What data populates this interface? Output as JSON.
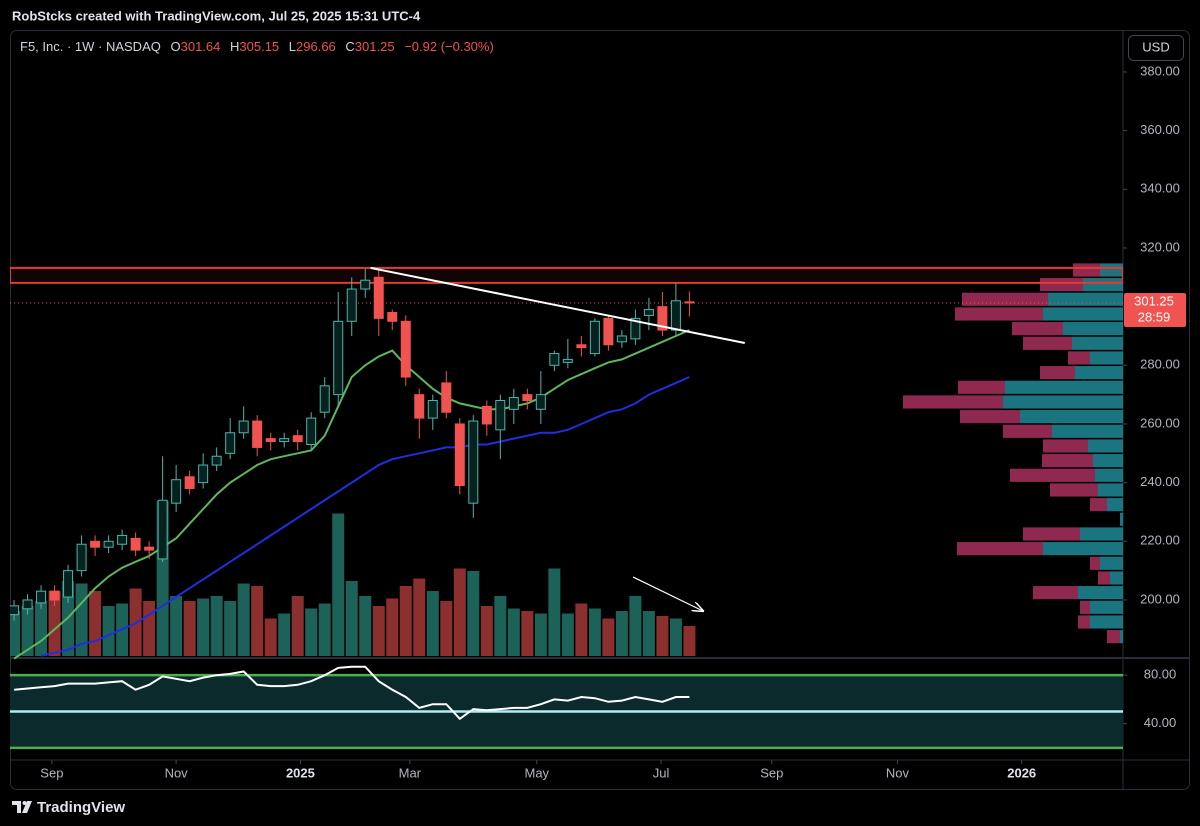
{
  "chart_data": {
    "type": "candlestick",
    "header": "RobStcks created with TradingView.com, Jul 25, 2025 15:31 UTC-4",
    "symbol": "F5, Inc. · 1W · NASDAQ",
    "ohlc_labels": [
      "O",
      "H",
      "L",
      "C"
    ],
    "change": "−0.92 (−0.30%)",
    "currency": "USD",
    "countdown": "28:59",
    "brand": "TradingView",
    "up_color": "#4db6ac",
    "down_color": "#f05350",
    "open": [
      195,
      197,
      199,
      203,
      201,
      210,
      220,
      218,
      219,
      221,
      218,
      214,
      233,
      242,
      240,
      246,
      250,
      257,
      261,
      255,
      254,
      256,
      253,
      264,
      270,
      295,
      306,
      310,
      298,
      295,
      270,
      262,
      274,
      260,
      233,
      266,
      258,
      265,
      270,
      265,
      280,
      281,
      287,
      284,
      296,
      288,
      289,
      297,
      300,
      292,
      301.64
    ],
    "high": [
      200,
      202,
      205,
      205,
      212,
      222,
      222,
      222,
      224,
      223,
      220,
      249,
      246,
      244,
      250,
      252,
      262,
      266,
      263,
      257,
      257,
      258,
      264,
      276,
      305,
      310,
      313,
      313,
      299,
      297,
      272,
      270,
      278,
      262,
      263,
      268,
      270,
      272,
      272,
      278,
      285,
      289,
      290,
      296,
      297,
      292,
      299,
      303,
      305,
      308,
      305.15
    ],
    "low": [
      193,
      195,
      197,
      198,
      199,
      208,
      215,
      216,
      217,
      215,
      214,
      213,
      230,
      236,
      238,
      244,
      248,
      255,
      249,
      251,
      252,
      251,
      251,
      262,
      266,
      290,
      303,
      290,
      292,
      273,
      255,
      258,
      262,
      236,
      228,
      256,
      248,
      260,
      265,
      260,
      278,
      279,
      283,
      283,
      285,
      286,
      287,
      292,
      290,
      290,
      296.66
    ],
    "close": [
      198,
      200,
      203,
      200,
      210,
      219,
      218,
      220,
      222,
      217,
      217,
      234,
      241,
      238,
      246,
      249,
      257,
      261,
      252,
      254,
      255,
      254,
      262,
      273,
      295,
      306,
      309,
      296,
      295,
      276,
      262,
      268,
      264,
      239,
      261,
      260,
      268,
      269,
      268,
      270,
      284,
      282,
      286,
      295,
      287,
      290,
      296,
      299,
      292,
      302,
      301.25
    ],
    "volume": {
      "up_color": "#1d6259",
      "down_color": "#8c2f2f",
      "values": [
        1.8,
        2.0,
        2.2,
        2.6,
        3.0,
        2.9,
        2.6,
        2.0,
        2.1,
        2.7,
        2.2,
        6.2,
        2.4,
        2.2,
        2.3,
        2.4,
        2.2,
        2.9,
        2.8,
        1.5,
        1.7,
        2.4,
        1.9,
        2.1,
        5.7,
        3.0,
        2.4,
        2.0,
        2.3,
        2.8,
        3.1,
        2.6,
        2.2,
        3.5,
        3.4,
        2.0,
        2.4,
        1.9,
        1.8,
        1.7,
        3.5,
        1.7,
        2.1,
        1.9,
        1.5,
        1.8,
        2.4,
        1.8,
        1.6,
        1.5,
        1.2
      ]
    },
    "moving_averages": [
      {
        "color": "#5cb85c",
        "values": [
          180,
          183,
          186,
          190,
          194,
          199,
          204,
          208,
          211,
          213,
          215,
          218,
          221,
          226,
          231,
          236,
          240,
          243,
          246,
          248,
          249,
          250,
          251,
          256,
          266,
          276,
          280,
          283,
          285,
          280,
          276,
          272,
          269,
          267,
          266,
          265,
          265,
          266,
          267,
          269,
          272,
          275,
          277,
          279,
          281,
          282,
          284,
          286,
          288,
          290,
          292
        ]
      },
      {
        "color": "#1d2fe0",
        "values": [
          null,
          null,
          181,
          182,
          183,
          185,
          186,
          188,
          190,
          192,
          195,
          198,
          201,
          204,
          207,
          210,
          213,
          216,
          219,
          222,
          225,
          228,
          231,
          234,
          237,
          240,
          243,
          246,
          248,
          249,
          250,
          251,
          252,
          252,
          253,
          253,
          254,
          255,
          256,
          257,
          257,
          258,
          260,
          262,
          264,
          265,
          267,
          270,
          272,
          274,
          276
        ]
      }
    ],
    "xlim": [
      -0.3,
      82.1
    ],
    "xticks": [
      {
        "value": 2.8,
        "label": "Sep"
      },
      {
        "value": 12.0,
        "label": "Nov"
      },
      {
        "value": 21.2,
        "label": "2025"
      },
      {
        "value": 29.3,
        "label": "Mar"
      },
      {
        "value": 38.7,
        "label": "May"
      },
      {
        "value": 47.9,
        "label": "Jul"
      },
      {
        "value": 56.1,
        "label": "Sep"
      },
      {
        "value": 65.4,
        "label": "Nov"
      },
      {
        "value": 74.6,
        "label": "2026"
      }
    ],
    "ylim": [
      180.9,
      394.3
    ],
    "yticks": [
      {
        "value": 200,
        "label": "200.00"
      },
      {
        "value": 220,
        "label": "220.00"
      },
      {
        "value": 240,
        "label": "240.00"
      },
      {
        "value": 260,
        "label": "260.00"
      },
      {
        "value": 280,
        "label": "280.00"
      },
      {
        "value": 300,
        "label": "300.00"
      },
      {
        "value": 320,
        "label": "320.00"
      },
      {
        "value": 340,
        "label": "340.00"
      },
      {
        "value": 360,
        "label": "360.00"
      },
      {
        "value": 380,
        "label": "380.00"
      }
    ],
    "resistance_zone": {
      "values": [
        308.1,
        313.2
      ],
      "color": "#e53935"
    },
    "last_price_color": "#f05350",
    "trendline": {
      "x": [
        26.4,
        54.1
      ],
      "y": [
        313.2,
        287.6
      ],
      "color": "#ffffff"
    },
    "volume_profile": {
      "up_color": "#1f8a96",
      "down_color": "#a8305e",
      "bins": [
        185,
        190,
        195,
        200,
        205,
        210,
        215,
        220,
        225,
        230,
        235,
        240,
        245,
        250,
        255,
        260,
        265,
        270,
        275,
        280,
        285,
        290,
        295,
        300,
        305,
        310,
        315
      ],
      "down": [
        1.3,
        1.2,
        1.0,
        4.5,
        1.2,
        1.0,
        8.6,
        5.7,
        0,
        1.7,
        4.8,
        8.5,
        5.1,
        4.5,
        4.9,
        6.0,
        10.0,
        4.7,
        3.5,
        2.2,
        4.9,
        5.1,
        8.8,
        8.6,
        4.3,
        2.7
      ],
      "up": [
        0.3,
        3.3,
        3.3,
        4.5,
        1.3,
        2.3,
        8.0,
        4.3,
        0.3,
        1.6,
        2.5,
        2.8,
        3.0,
        3.5,
        7.1,
        10.3,
        12.0,
        11.8,
        4.8,
        3.3,
        5.1,
        6.0,
        8.0,
        7.5,
        4.0,
        2.3
      ]
    },
    "rsi": {
      "color": "#ffffff",
      "level_colors": [
        "#4caf50",
        "#b2ebf2",
        "#4caf50"
      ],
      "levels": [
        80,
        50,
        20
      ],
      "ylim": [
        10,
        92.5
      ],
      "yticks": [
        {
          "value": 80,
          "label": "80.00"
        },
        {
          "value": 40,
          "label": "40.00"
        }
      ],
      "values": [
        68,
        69,
        70,
        71,
        73,
        73,
        73,
        74,
        75,
        68,
        72,
        79,
        77,
        75,
        78,
        80,
        81,
        83,
        72,
        71,
        71,
        72,
        75,
        80,
        86,
        87,
        87,
        75,
        68,
        62,
        53,
        56,
        56,
        44,
        52,
        51,
        52,
        53,
        53,
        56,
        60,
        59,
        62,
        61,
        58,
        59,
        62,
        60,
        58,
        62,
        62
      ]
    }
  }
}
